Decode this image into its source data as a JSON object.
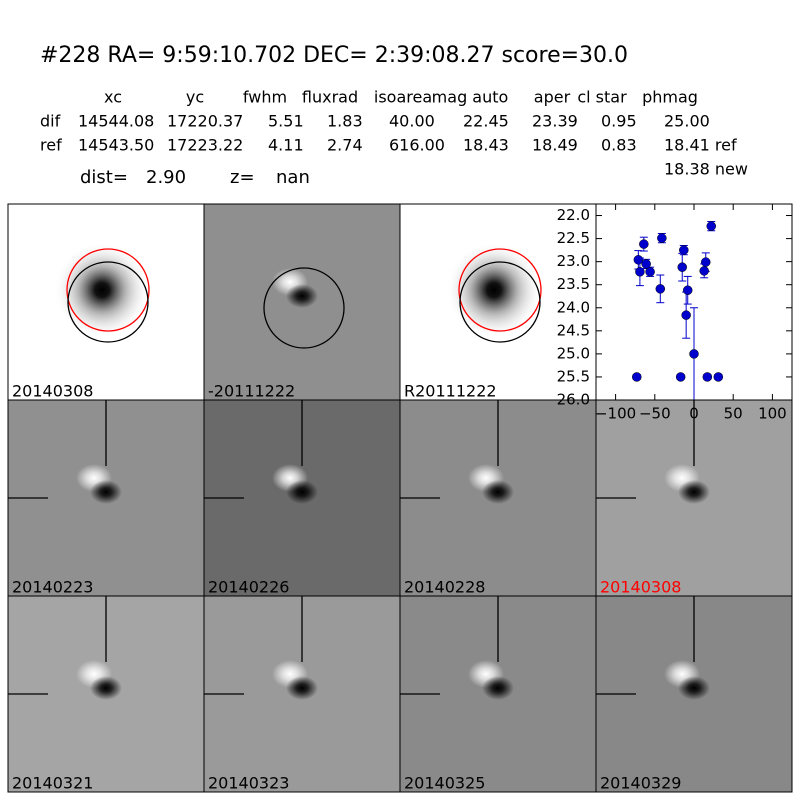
{
  "header": {
    "title": "#228   RA= 9:59:10.702 DEC= 2:39:08.27       score=30.0"
  },
  "table": {
    "columns": [
      "xc",
      "yc",
      "fwhm",
      "fluxrad",
      "isoarea",
      "mag auto",
      "aper",
      "cl star",
      "phmag"
    ],
    "rows": [
      [
        "dif",
        "14544.08",
        "17220.37",
        "5.51",
        "1.83",
        "40.00",
        "22.45",
        "23.39",
        "0.95",
        "25.00"
      ],
      [
        "ref",
        "14543.50",
        "17223.22",
        "4.11",
        "2.74",
        "616.00",
        "18.43",
        "18.49",
        "0.83",
        "18.41 ref"
      ]
    ],
    "note": "18.38 new"
  },
  "info": {
    "dist_label": "dist=",
    "dist": "2.90",
    "z_label": "z=",
    "z": "nan"
  },
  "panels": [
    "20140308",
    "-20111222",
    "R20111222",
    "20140223",
    "20140226",
    "20140228",
    "20140308",
    "20140321",
    "20140323",
    "20140325",
    "20140329"
  ],
  "chart_data": {
    "type": "scatter",
    "color": "#0000cc",
    "x": [
      -71,
      -69,
      -64,
      -61,
      -56,
      -41,
      -43,
      -13,
      -15,
      -10,
      -8,
      0,
      15,
      13,
      22,
      -73,
      -17,
      17,
      31
    ],
    "y": [
      22.96,
      23.22,
      22.62,
      23.05,
      23.22,
      22.49,
      23.59,
      22.75,
      23.12,
      24.16,
      23.62,
      25.0,
      23.01,
      23.2,
      22.23,
      25.5,
      25.5,
      25.5,
      25.5
    ],
    "errors": [
      0.2,
      0.3,
      0.15,
      0.1,
      0.1,
      0.1,
      0.3,
      0.1,
      0.3,
      0.5,
      0.3,
      1.0,
      0.2,
      0.15,
      0.1,
      0.05,
      0.05,
      0.05,
      0.05
    ],
    "xlim": [
      -125,
      125
    ],
    "ylim": [
      21.75,
      26
    ],
    "invert_y": true,
    "xticks": [
      {
        "value": -100,
        "label": "−100"
      },
      {
        "value": -50,
        "label": "−50"
      },
      0,
      50,
      100
    ],
    "yticks": [
      {
        "value": 22,
        "label": "22.0"
      },
      22.5,
      {
        "value": 23,
        "label": "23.0"
      },
      23.5,
      {
        "value": 24,
        "label": "24.0"
      },
      24.5,
      {
        "value": 25,
        "label": "25.0"
      },
      25.5,
      {
        "value": 26,
        "label": "26.0"
      }
    ]
  }
}
